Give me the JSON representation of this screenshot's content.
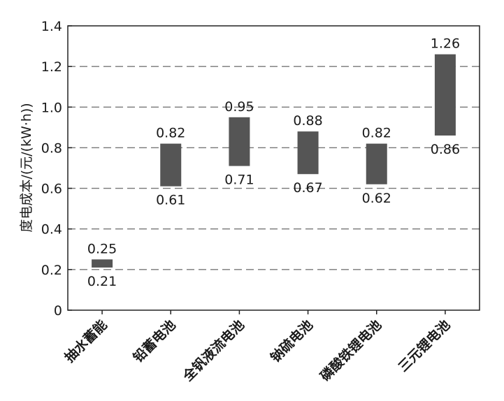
{
  "chart_data": {
    "type": "bar",
    "subtype": "floating-range",
    "title": "",
    "xlabel": "",
    "ylabel": "度电成本/(元/(kW·h))",
    "ylim": [
      0,
      1.4
    ],
    "yticks": [
      0,
      0.2,
      0.4,
      0.6,
      0.8,
      1.0,
      1.2,
      1.4
    ],
    "ytick_labels": [
      "0",
      "0.2",
      "0.4",
      "0.6",
      "0.8",
      "1.0",
      "1.2",
      "1.4"
    ],
    "grid": "horizontal dashed",
    "categories": [
      "抽水蓄能",
      "铅蓄电池",
      "全钒液流电池",
      "钠硫电池",
      "磷酸铁锂电池",
      "三元锂电池"
    ],
    "low": [
      0.21,
      0.61,
      0.71,
      0.67,
      0.62,
      0.86
    ],
    "high": [
      0.25,
      0.82,
      0.95,
      0.88,
      0.82,
      1.26
    ],
    "low_labels": [
      "0.21",
      "0.61",
      "0.71",
      "0.67",
      "0.62",
      "0.86"
    ],
    "high_labels": [
      "0.25",
      "0.82",
      "0.95",
      "0.88",
      "0.82",
      "1.26"
    ],
    "bar_color": "#555555",
    "grid_color": "#777777"
  }
}
